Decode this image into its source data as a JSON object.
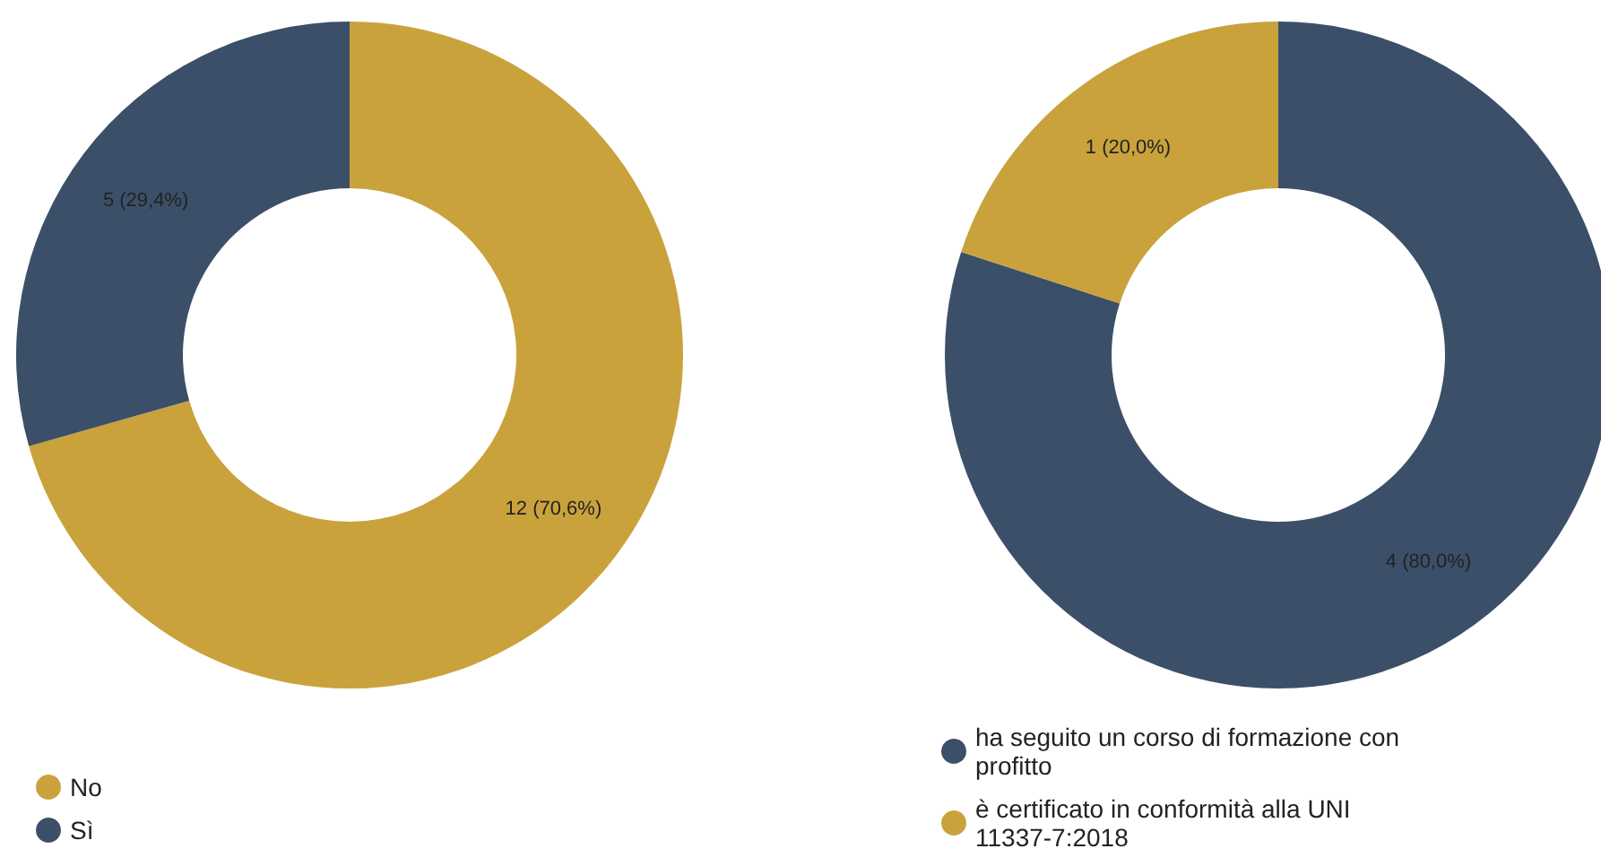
{
  "chart_data": [
    {
      "type": "donut",
      "categories": [
        "No",
        "Sì"
      ],
      "values": [
        12,
        5
      ],
      "colors": [
        "#c9a23c",
        "#3b4f69"
      ],
      "value_labels": [
        "12 (70,6%)",
        "5 (29,4%)"
      ],
      "legend": "bottom"
    },
    {
      "type": "donut",
      "categories": [
        "ha seguito un corso di formazione con profitto",
        "è certificato in conformità alla UNI 11337-7:2018"
      ],
      "values": [
        4,
        1
      ],
      "colors": [
        "#3b4f69",
        "#c9a23c"
      ],
      "value_labels": [
        "4 (80,0%)",
        "1 (20,0%)"
      ],
      "legend": "bottom"
    }
  ]
}
